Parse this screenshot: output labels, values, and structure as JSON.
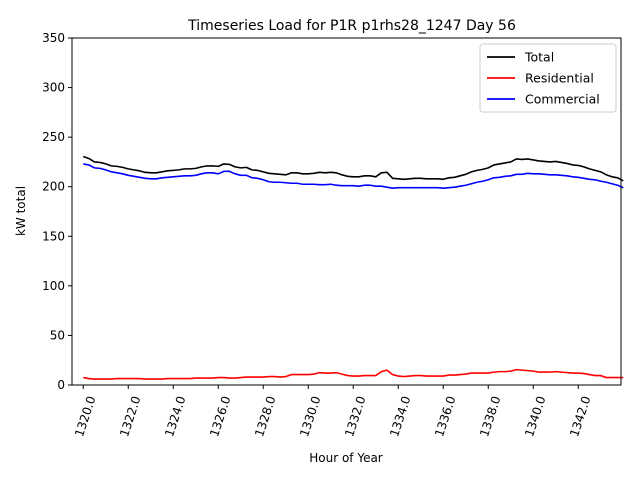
{
  "chart_data": {
    "type": "line",
    "title": "Timeseries Load for P1R p1rhs28_1247  Day 56",
    "xlabel": "Hour of Year",
    "ylabel": "kW total",
    "xlim": [
      1319.5,
      1343.9
    ],
    "ylim": [
      0,
      350
    ],
    "xticks": [
      1320,
      1322,
      1324,
      1326,
      1328,
      1330,
      1332,
      1334,
      1336,
      1338,
      1340,
      1342
    ],
    "xtick_labels": [
      "1320.0",
      "1322.0",
      "1324.0",
      "1326.0",
      "1328.0",
      "1330.0",
      "1332.0",
      "1334.0",
      "1336.0",
      "1338.0",
      "1340.0",
      "1342.0"
    ],
    "yticks": [
      0,
      50,
      100,
      150,
      200,
      250,
      300,
      350
    ],
    "ytick_labels": [
      "0",
      "50",
      "100",
      "150",
      "200",
      "250",
      "300",
      "350"
    ],
    "grid": false,
    "legend_position": "top-right",
    "x_start": 1320,
    "x_step": 0.25,
    "series": [
      {
        "name": "Total",
        "color": "#000000",
        "values": [
          230.5,
          228.5,
          225.0,
          224.5,
          223.0,
          221.0,
          220.5,
          219.5,
          218.0,
          217.0,
          216.0,
          214.5,
          214.0,
          214.0,
          215.0,
          216.0,
          216.5,
          217.0,
          218.0,
          218.0,
          218.5,
          220.0,
          221.0,
          221.0,
          220.5,
          223.0,
          222.5,
          220.0,
          219.0,
          219.5,
          217.0,
          216.5,
          215.0,
          213.5,
          213.0,
          212.5,
          212.0,
          214.0,
          214.0,
          213.0,
          213.0,
          213.5,
          214.5,
          214.0,
          214.5,
          214.0,
          212.0,
          210.5,
          210.0,
          210.0,
          211.0,
          211.0,
          210.0,
          214.0,
          214.5,
          208.5,
          208.0,
          207.5,
          208.0,
          208.5,
          208.5,
          208.0,
          208.0,
          208.0,
          207.5,
          209.0,
          209.5,
          211.0,
          212.5,
          215.0,
          216.5,
          217.5,
          219.0,
          222.0,
          223.0,
          224.0,
          225.0,
          228.0,
          227.5,
          228.0,
          227.0,
          226.0,
          225.5,
          225.0,
          225.5,
          224.5,
          223.5,
          222.0,
          221.5,
          220.0,
          218.0,
          216.5,
          215.0,
          212.0,
          210.0,
          209.0,
          206.0
        ]
      },
      {
        "name": "Residential",
        "color": "#ff0000",
        "values": [
          7.5,
          6.5,
          6.0,
          6.0,
          6.0,
          6.0,
          6.5,
          6.5,
          6.5,
          6.5,
          6.5,
          6.0,
          6.0,
          6.0,
          6.0,
          6.5,
          6.5,
          6.5,
          6.5,
          6.5,
          7.0,
          7.0,
          7.0,
          7.0,
          7.5,
          7.5,
          7.0,
          7.0,
          7.5,
          8.0,
          8.0,
          8.0,
          8.0,
          8.5,
          8.5,
          8.0,
          8.5,
          10.5,
          10.5,
          10.5,
          10.5,
          11.0,
          12.5,
          12.0,
          12.0,
          12.5,
          11.0,
          9.5,
          9.0,
          9.0,
          9.5,
          9.5,
          9.5,
          13.5,
          15.0,
          10.5,
          9.0,
          8.5,
          9.0,
          9.5,
          9.5,
          9.0,
          9.0,
          9.0,
          9.0,
          10.0,
          10.0,
          10.5,
          11.0,
          12.0,
          12.0,
          12.0,
          12.0,
          13.0,
          13.5,
          13.5,
          14.0,
          15.5,
          15.0,
          14.5,
          14.0,
          13.0,
          13.0,
          13.0,
          13.5,
          13.0,
          12.5,
          12.0,
          12.0,
          11.5,
          10.5,
          9.5,
          9.5,
          7.5,
          7.5,
          7.5,
          7.5
        ]
      },
      {
        "name": "Commercial",
        "color": "#0000ff",
        "values": [
          223.0,
          222.0,
          219.0,
          218.5,
          217.0,
          215.0,
          214.0,
          213.0,
          211.5,
          210.5,
          209.5,
          208.5,
          208.0,
          208.0,
          209.0,
          209.5,
          210.0,
          210.5,
          211.0,
          211.0,
          211.5,
          213.0,
          214.0,
          214.0,
          213.0,
          215.5,
          215.5,
          213.0,
          211.5,
          211.5,
          209.0,
          208.5,
          207.0,
          205.0,
          204.5,
          204.5,
          204.0,
          203.5,
          203.5,
          202.5,
          202.5,
          202.5,
          202.0,
          202.0,
          202.5,
          201.5,
          201.0,
          201.0,
          201.0,
          200.5,
          201.5,
          201.5,
          200.5,
          200.5,
          199.5,
          198.5,
          199.0,
          199.0,
          199.0,
          199.0,
          199.0,
          199.0,
          199.0,
          199.0,
          198.5,
          199.0,
          199.5,
          200.5,
          201.5,
          203.0,
          204.5,
          205.5,
          207.0,
          209.0,
          209.5,
          210.5,
          211.0,
          212.5,
          212.5,
          213.5,
          213.0,
          213.0,
          212.5,
          212.0,
          212.0,
          211.5,
          211.0,
          210.0,
          209.5,
          208.5,
          207.5,
          207.0,
          205.5,
          204.5,
          203.0,
          201.5,
          199.0
        ]
      }
    ]
  }
}
